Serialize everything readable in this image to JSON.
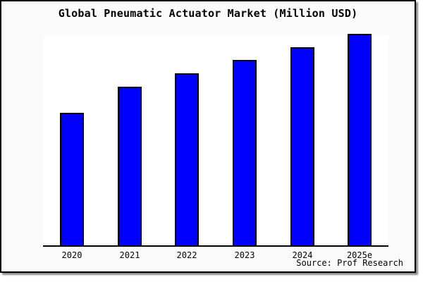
{
  "page": {
    "title": "Global Pneumatic Actuator Market (Million USD)",
    "source": "Source: Prof Research"
  },
  "colors": {
    "page_background": "#fafafa",
    "plot_background": "#ffffff",
    "bar_fill": "#0000ff",
    "bar_border": "#000000",
    "frame_border": "#000000",
    "axis_line": "#000000",
    "text": "#000000",
    "shadow": "#8a8a8a"
  },
  "chart_data": {
    "type": "bar",
    "title": "Global Pneumatic Actuator Market (Million USD)",
    "categories": [
      "2020",
      "2021",
      "2022",
      "2023",
      "2024",
      "2025e"
    ],
    "values": [
      62.7,
      75.0,
      81.3,
      87.7,
      93.7,
      100
    ],
    "value_note": "no y-axis or data labels shown; values are bar heights as percent of tallest bar (2025e = 100)",
    "xlabel": "",
    "ylabel": "",
    "ylim": [
      0,
      100
    ],
    "grid": false,
    "legend": false,
    "axes_shown": [
      "bottom"
    ],
    "source_label": "Source: Prof Research"
  }
}
